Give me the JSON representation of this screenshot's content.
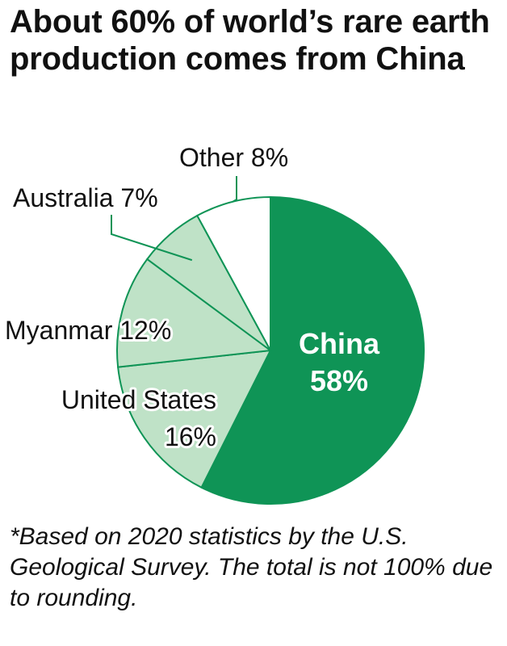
{
  "title": "About 60% of world’s rare earth production comes from China",
  "footnote": "*Based on 2020 statistics by the U.S. Geological Survey. The total is not 100% due to rounding.",
  "colors": {
    "china": "#0f9456",
    "others": "#bfe2c7",
    "other": "#ffffff",
    "divider": "#0f9456",
    "label": "#111111",
    "china_label": "#ffffff"
  },
  "chart_data": {
    "type": "pie",
    "title": "About 60% of world’s rare earth production comes from China",
    "slices": [
      {
        "label": "China",
        "value": 58,
        "value_label": "58%"
      },
      {
        "label": "United States",
        "value": 16,
        "value_label": "16%"
      },
      {
        "label": "Myanmar",
        "value": 12,
        "value_label": "12%"
      },
      {
        "label": "Australia",
        "value": 7,
        "value_label": "7%"
      },
      {
        "label": "Other",
        "value": 8,
        "value_label": "8%"
      }
    ],
    "start": "12 o'clock",
    "direction": "clockwise",
    "legend": "none"
  }
}
